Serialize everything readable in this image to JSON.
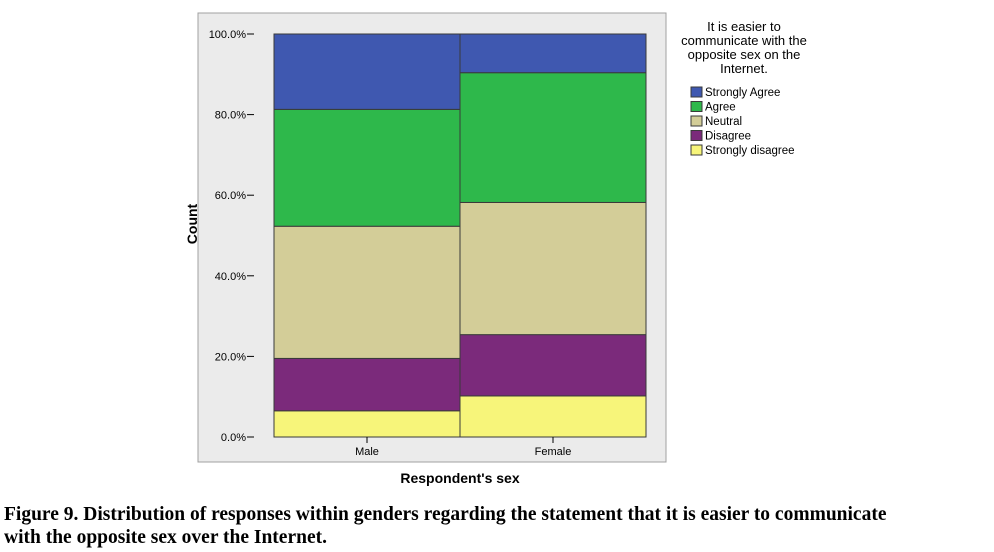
{
  "chart_data": {
    "type": "bar",
    "stacked": true,
    "orientation": "vertical",
    "categories": [
      "Male",
      "Female"
    ],
    "series": [
      {
        "name": "Strongly disagree",
        "color": "#f7f57a",
        "values": [
          6.5,
          10.2
        ]
      },
      {
        "name": "Disagree",
        "color": "#7b2a7b",
        "values": [
          13.0,
          15.2
        ]
      },
      {
        "name": "Neutral",
        "color": "#d3cd98",
        "values": [
          32.8,
          32.8
        ]
      },
      {
        "name": "Agree",
        "color": "#2eb84b",
        "values": [
          29.0,
          32.2
        ]
      },
      {
        "name": "Strongly Agree",
        "color": "#3f58b0",
        "values": [
          18.7,
          9.6
        ]
      }
    ],
    "legend_order": [
      "Strongly Agree",
      "Agree",
      "Neutral",
      "Disagree",
      "Strongly disagree"
    ],
    "legend_title": [
      "It is easier to",
      "communicate with the",
      "opposite sex on the",
      "Internet."
    ],
    "legend_position": "right",
    "xlabel": "Respondent's sex",
    "ylabel": "Count",
    "ylim": [
      0,
      100
    ],
    "yticks": [
      0,
      20,
      40,
      60,
      80,
      100
    ],
    "ytick_labels": [
      "0.0%",
      "20.0%",
      "40.0%",
      "60.0%",
      "80.0%",
      "100.0%"
    ],
    "grid": false,
    "plot_background": "#ebebeb"
  },
  "caption": {
    "line1": "Figure 9. Distribution of responses within genders regarding the statement that it is easier to communicate",
    "line2": "with the opposite sex over the Internet."
  }
}
